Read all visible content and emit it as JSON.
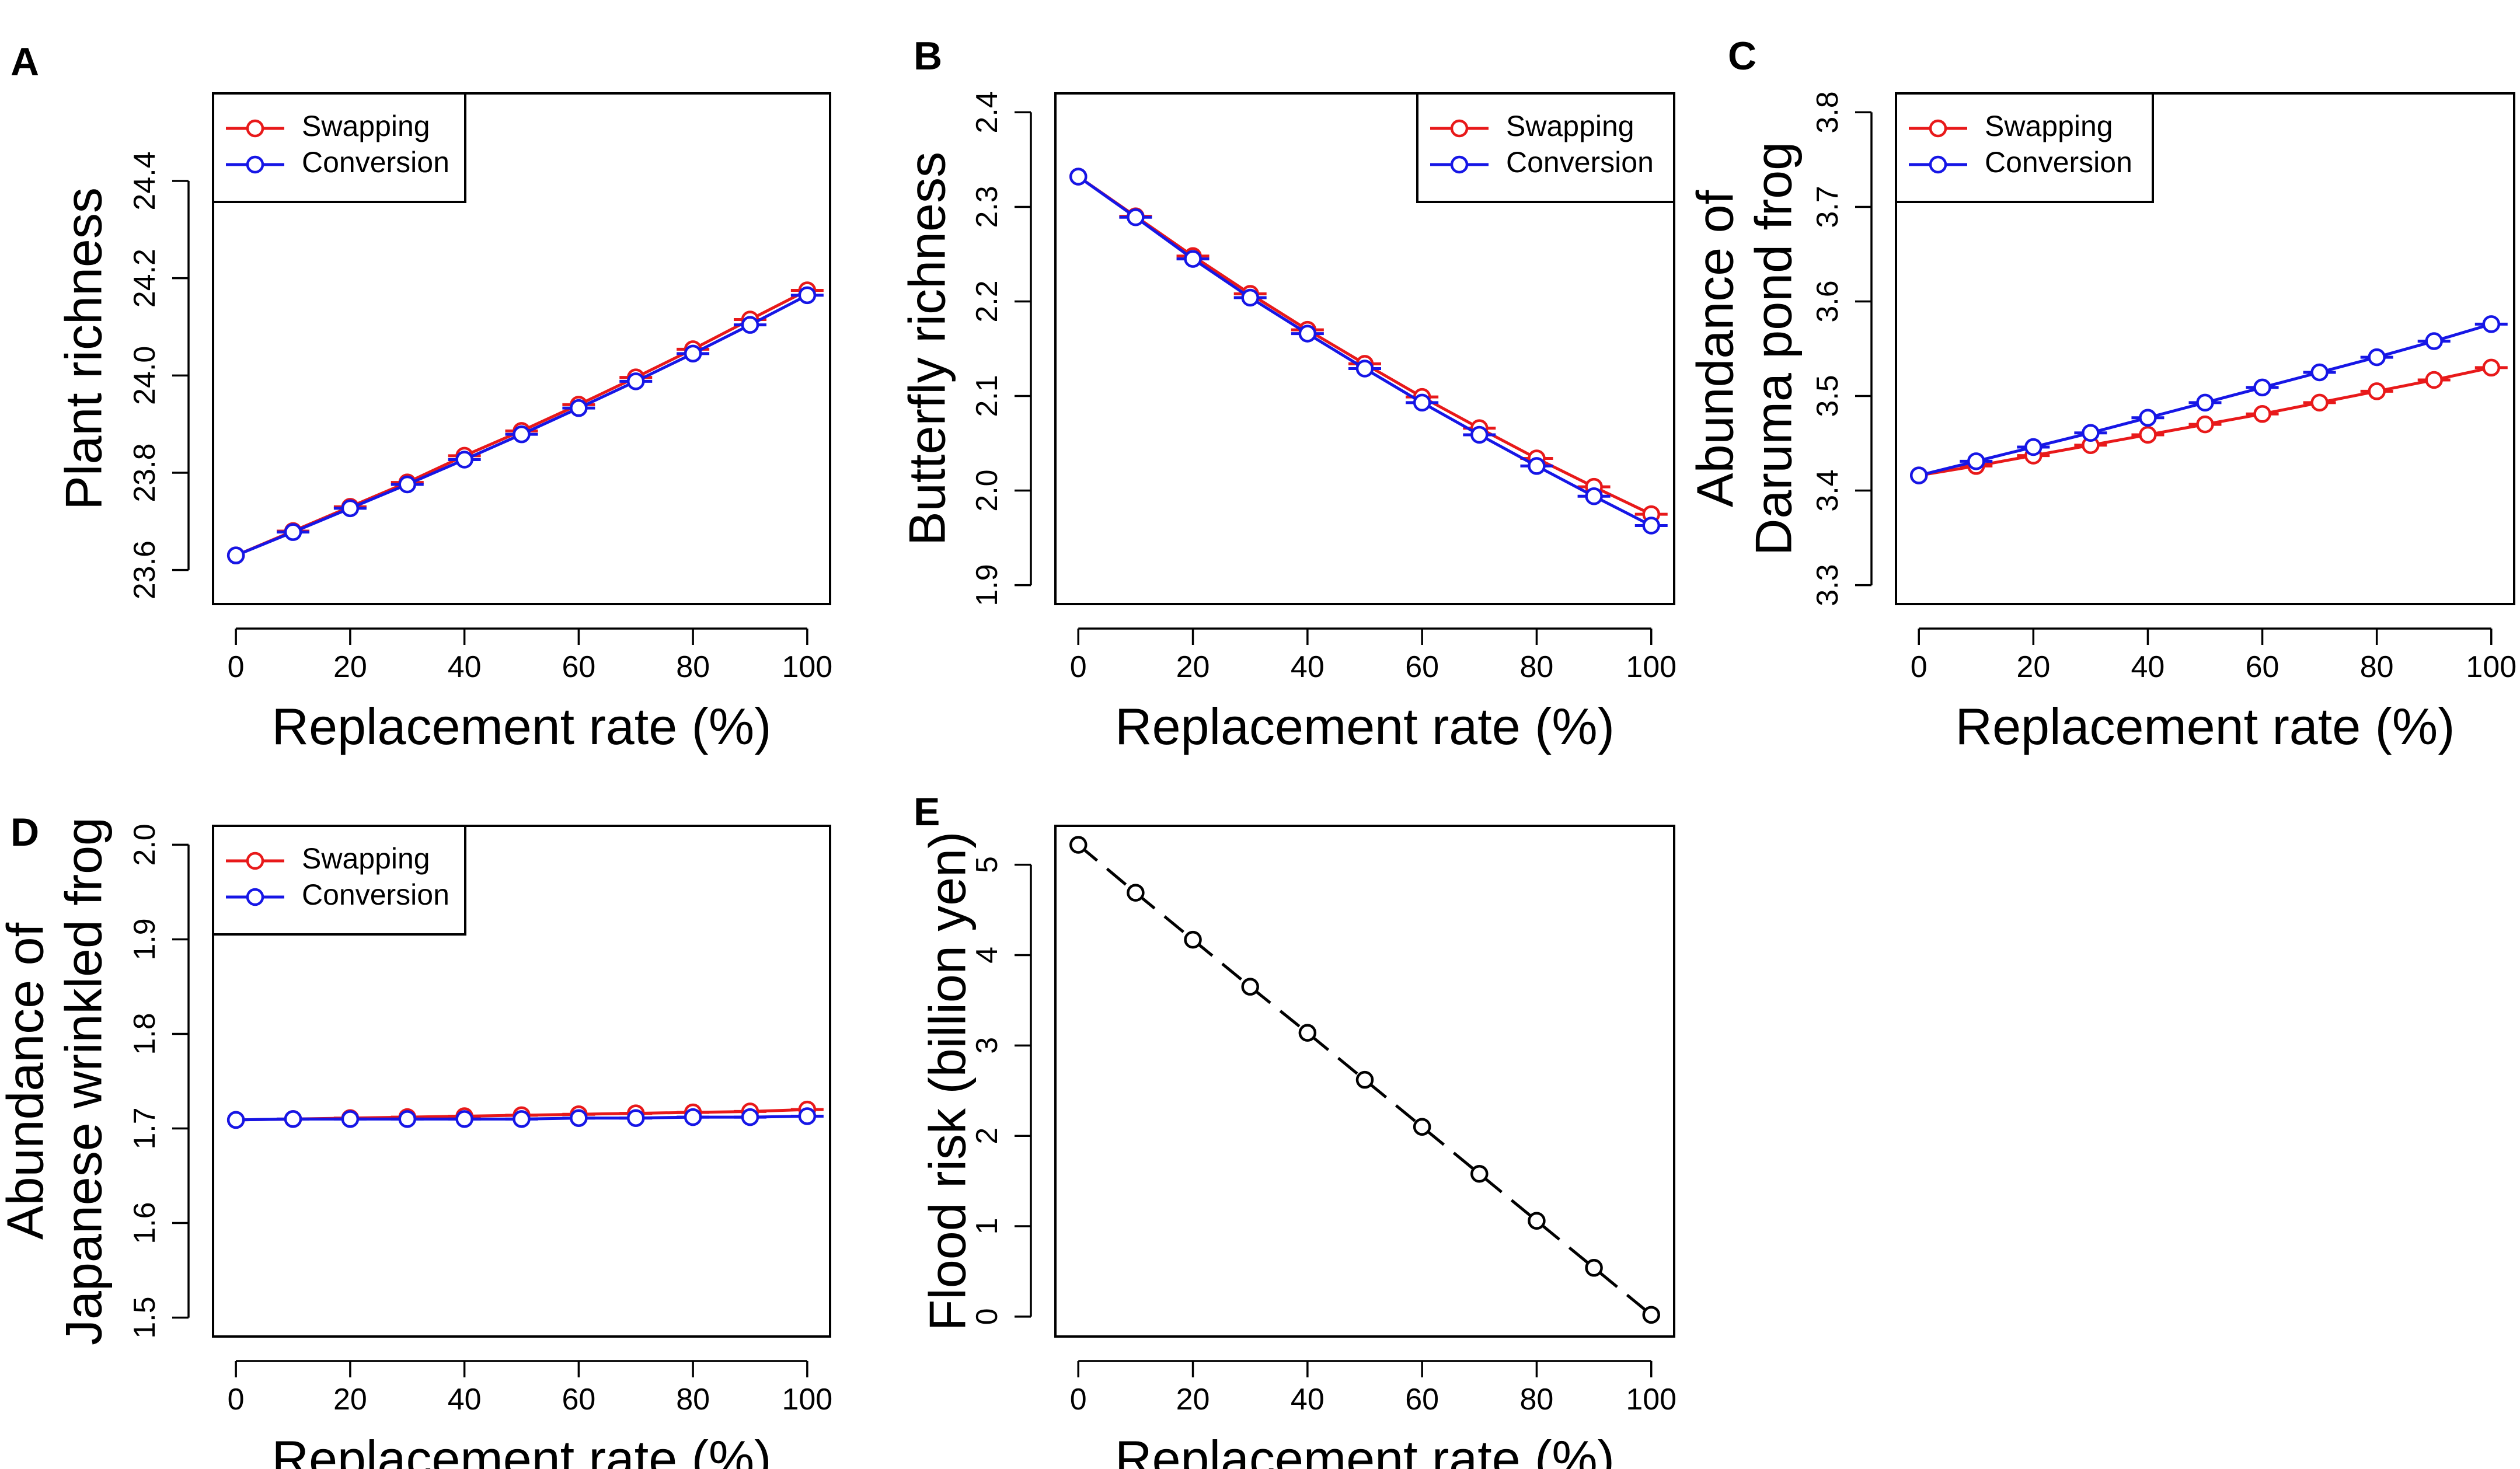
{
  "figure": {
    "colors": {
      "swapping": "#e8191a",
      "conversion": "#1616e6",
      "flood": "#000000",
      "axis": "#000000"
    }
  },
  "chart_data": [
    {
      "id": "A",
      "type": "line",
      "panel_label": "A",
      "xlabel": "Replacement rate (%)",
      "ylabel": [
        "Plant richness"
      ],
      "xlim": [
        -4,
        104
      ],
      "ylim": [
        23.53,
        24.58
      ],
      "xticks": [
        0,
        20,
        40,
        60,
        80,
        100
      ],
      "yticks": [
        23.6,
        23.8,
        24.0,
        24.2,
        24.4
      ],
      "ytick_labels": [
        "23.6",
        "23.8",
        "24.0",
        "24.2",
        "24.4"
      ],
      "legend": {
        "position": "top-left",
        "entries": [
          "Swapping",
          "Conversion"
        ]
      },
      "x": [
        0,
        10,
        20,
        30,
        40,
        50,
        60,
        70,
        80,
        90,
        100
      ],
      "series": [
        {
          "name": "Swapping",
          "color": "#e8191a",
          "values": [
            23.63,
            23.68,
            23.73,
            23.78,
            23.835,
            23.886,
            23.94,
            23.996,
            24.054,
            24.115,
            24.175
          ]
        },
        {
          "name": "Conversion",
          "color": "#1616e6",
          "values": [
            23.63,
            23.678,
            23.727,
            23.776,
            23.827,
            23.879,
            23.933,
            23.988,
            24.045,
            24.104,
            24.165
          ]
        }
      ]
    },
    {
      "id": "B",
      "type": "line",
      "panel_label": "B",
      "xlabel": "Replacement rate (%)",
      "ylabel": [
        "Butterfly richness"
      ],
      "xlim": [
        -4,
        104
      ],
      "ylim": [
        1.88,
        2.42
      ],
      "xticks": [
        0,
        20,
        40,
        60,
        80,
        100
      ],
      "yticks": [
        1.9,
        2.0,
        2.1,
        2.2,
        2.3,
        2.4
      ],
      "ytick_labels": [
        "1.9",
        "2.0",
        "2.1",
        "2.2",
        "2.3",
        "2.4"
      ],
      "legend": {
        "position": "top-right",
        "entries": [
          "Swapping",
          "Conversion"
        ]
      },
      "x": [
        0,
        10,
        20,
        30,
        40,
        50,
        60,
        70,
        80,
        90,
        100
      ],
      "series": [
        {
          "name": "Swapping",
          "color": "#e8191a",
          "values": [
            2.332,
            2.29,
            2.248,
            2.208,
            2.17,
            2.134,
            2.099,
            2.066,
            2.034,
            2.004,
            1.975
          ]
        },
        {
          "name": "Conversion",
          "color": "#1616e6",
          "values": [
            2.332,
            2.289,
            2.245,
            2.204,
            2.166,
            2.129,
            2.093,
            2.059,
            2.026,
            1.994,
            1.963
          ]
        }
      ]
    },
    {
      "id": "C",
      "type": "line",
      "panel_label": "C",
      "xlabel": "Replacement rate (%)",
      "ylabel": [
        "Abundance of",
        "Daruma pond frog"
      ],
      "xlim": [
        -4,
        104
      ],
      "ylim": [
        3.28,
        3.82
      ],
      "xticks": [
        0,
        20,
        40,
        60,
        80,
        100
      ],
      "yticks": [
        3.3,
        3.4,
        3.5,
        3.6,
        3.7,
        3.8
      ],
      "ytick_labels": [
        "3.3",
        "3.4",
        "3.5",
        "3.6",
        "3.7",
        "3.8"
      ],
      "legend": {
        "position": "top-left",
        "entries": [
          "Swapping",
          "Conversion"
        ]
      },
      "x": [
        0,
        10,
        20,
        30,
        40,
        50,
        60,
        70,
        80,
        90,
        100
      ],
      "series": [
        {
          "name": "Swapping",
          "color": "#e8191a",
          "values": [
            3.416,
            3.426,
            3.437,
            3.448,
            3.459,
            3.47,
            3.481,
            3.493,
            3.505,
            3.517,
            3.53
          ]
        },
        {
          "name": "Conversion",
          "color": "#1616e6",
          "values": [
            3.416,
            3.431,
            3.446,
            3.461,
            3.477,
            3.493,
            3.509,
            3.525,
            3.541,
            3.558,
            3.576
          ]
        }
      ]
    },
    {
      "id": "D",
      "type": "line",
      "panel_label": "D",
      "xlabel": "Replacement rate (%)",
      "ylabel": [
        "Abundance of",
        "Japanese wrinkled frog"
      ],
      "xlim": [
        -4,
        104
      ],
      "ylim": [
        1.48,
        2.02
      ],
      "xticks": [
        0,
        20,
        40,
        60,
        80,
        100
      ],
      "yticks": [
        1.5,
        1.6,
        1.7,
        1.8,
        1.9,
        2.0
      ],
      "ytick_labels": [
        "1.5",
        "1.6",
        "1.7",
        "1.8",
        "1.9",
        "2.0"
      ],
      "legend": {
        "position": "top-left",
        "entries": [
          "Swapping",
          "Conversion"
        ]
      },
      "x": [
        0,
        10,
        20,
        30,
        40,
        50,
        60,
        70,
        80,
        90,
        100
      ],
      "series": [
        {
          "name": "Swapping",
          "color": "#e8191a",
          "values": [
            1.709,
            1.71,
            1.711,
            1.712,
            1.713,
            1.714,
            1.715,
            1.716,
            1.717,
            1.718,
            1.72
          ]
        },
        {
          "name": "Conversion",
          "color": "#1616e6",
          "values": [
            1.709,
            1.71,
            1.71,
            1.71,
            1.71,
            1.71,
            1.711,
            1.711,
            1.712,
            1.712,
            1.713
          ]
        }
      ]
    },
    {
      "id": "E",
      "type": "line",
      "panel_label": "E",
      "xlabel": "Replacement rate (%)",
      "ylabel": [
        "Flood risk (billion yen)"
      ],
      "xlim": [
        -4,
        104
      ],
      "ylim": [
        -0.22,
        5.43
      ],
      "xticks": [
        0,
        20,
        40,
        60,
        80,
        100
      ],
      "yticks": [
        0,
        1,
        2,
        3,
        4,
        5
      ],
      "ytick_labels": [
        "0",
        "1",
        "2",
        "3",
        "4",
        "5"
      ],
      "legend": null,
      "x": [
        0,
        10,
        20,
        30,
        40,
        50,
        60,
        70,
        80,
        90,
        100
      ],
      "series": [
        {
          "name": "Flood risk",
          "color": "#000000",
          "dashed": true,
          "values": [
            5.22,
            4.69,
            4.17,
            3.65,
            3.14,
            2.62,
            2.1,
            1.58,
            1.06,
            0.54,
            0.02
          ]
        }
      ]
    }
  ]
}
